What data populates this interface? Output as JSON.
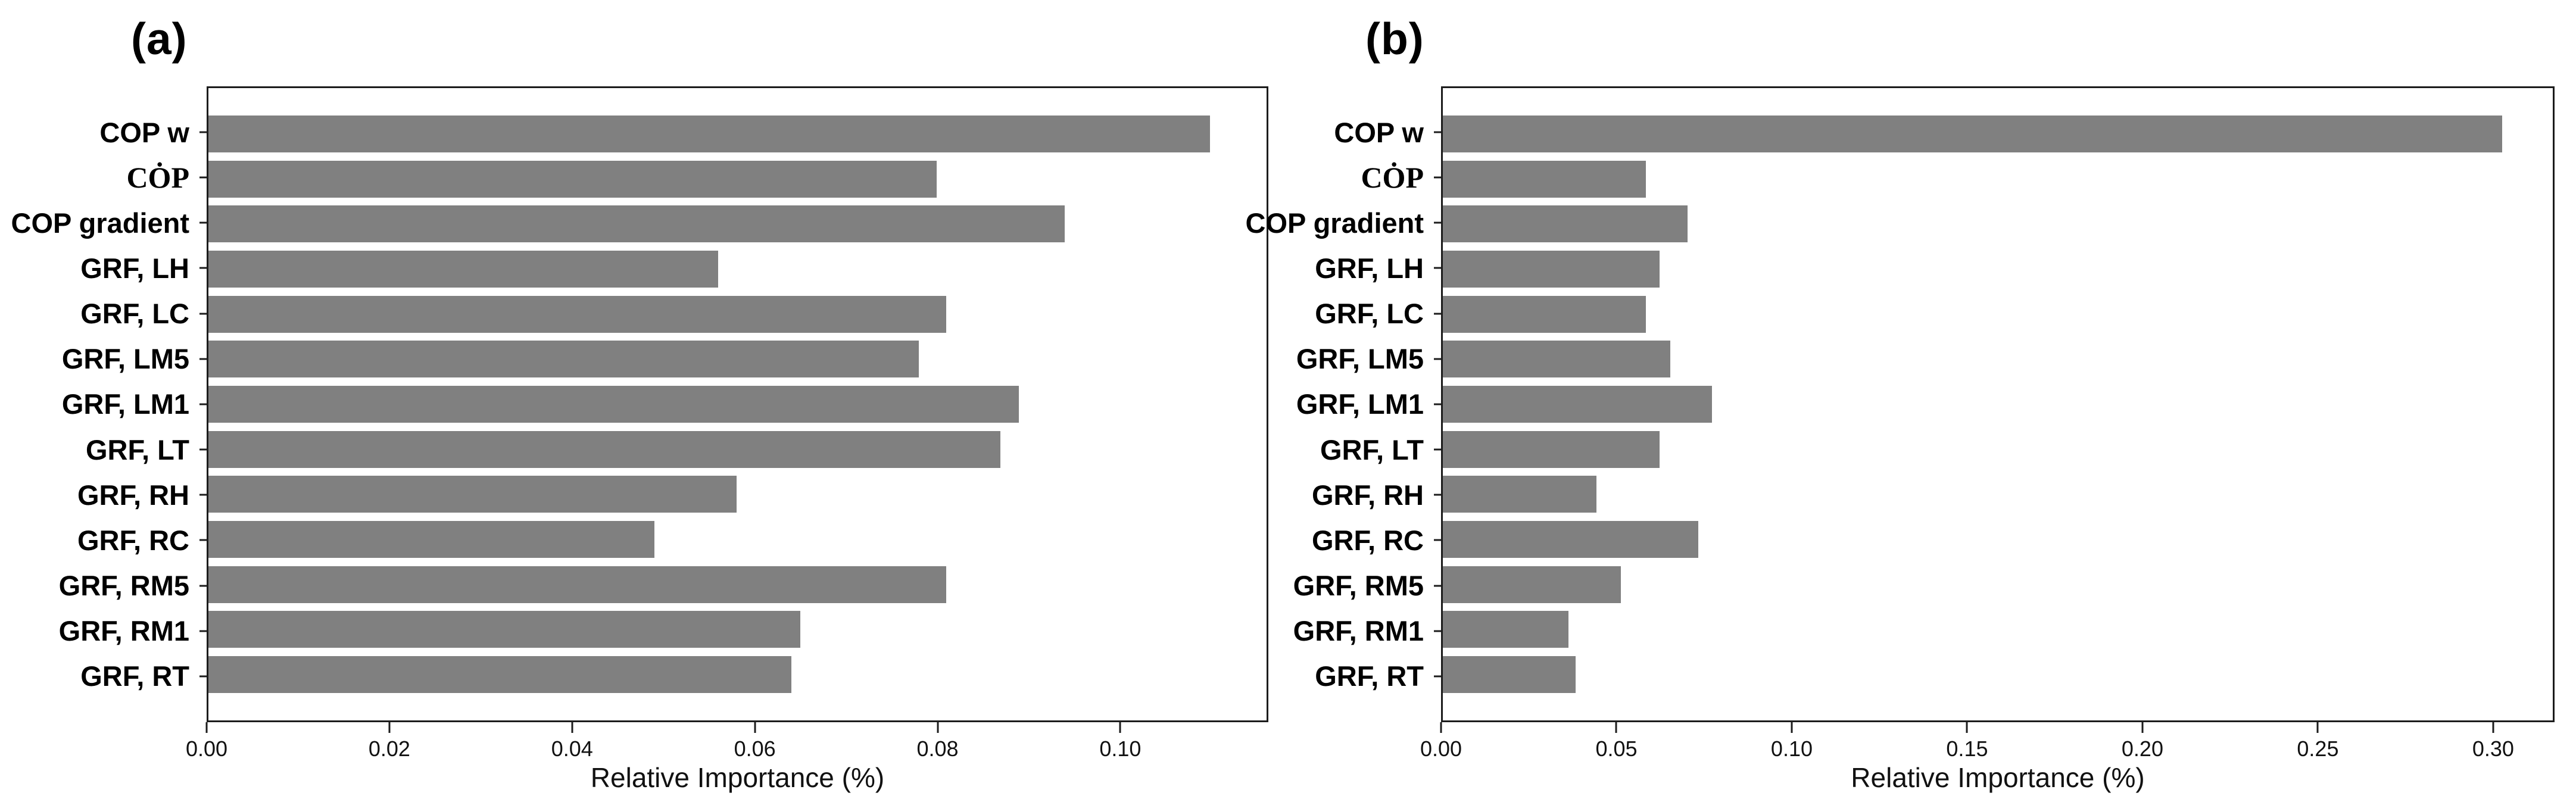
{
  "figure": {
    "background": "#ffffff",
    "axis_color": "#1c1c1c",
    "text_color": "#000000"
  },
  "chart_data": [
    {
      "type": "bar",
      "orientation": "horizontal",
      "panel_label": "(a)",
      "title": "",
      "categories": [
        "COP w",
        "CȮP",
        "COP gradient",
        "GRF, LH",
        "GRF, LC",
        "GRF, LM5",
        "GRF, LM1",
        "GRF, LT",
        "GRF, RH",
        "GRF, RC",
        "GRF, RM5",
        "GRF, RM1",
        "GRF, RT"
      ],
      "values": [
        0.11,
        0.08,
        0.094,
        0.056,
        0.081,
        0.078,
        0.089,
        0.087,
        0.058,
        0.049,
        0.081,
        0.065,
        0.064
      ],
      "xlabel": "Relative Importance (%)",
      "ylabel": "",
      "xticks": [
        0.0,
        0.02,
        0.04,
        0.06,
        0.08,
        0.1
      ],
      "xtick_labels": [
        "0.00",
        "0.02",
        "0.04",
        "0.06",
        "0.08",
        "0.10"
      ],
      "xlim": [
        0,
        0.1162
      ],
      "bar_color": "#808080",
      "grid": false,
      "legend": null
    },
    {
      "type": "bar",
      "orientation": "horizontal",
      "panel_label": "(b)",
      "title": "",
      "categories": [
        "COP w",
        "CȮP",
        "COP gradient",
        "GRF, LH",
        "GRF, LC",
        "GRF, LM5",
        "GRF, LM1",
        "GRF, LT",
        "GRF, RH",
        "GRF, RC",
        "GRF, RM5",
        "GRF, RM1",
        "GRF, RT"
      ],
      "values": [
        0.303,
        0.058,
        0.07,
        0.062,
        0.058,
        0.065,
        0.077,
        0.062,
        0.044,
        0.073,
        0.051,
        0.036,
        0.038
      ],
      "xlabel": "Relative Importance (%)",
      "ylabel": "",
      "xticks": [
        0.0,
        0.05,
        0.1,
        0.15,
        0.2,
        0.25,
        0.3
      ],
      "xtick_labels": [
        "0.00",
        "0.05",
        "0.10",
        "0.15",
        "0.20",
        "0.25",
        "0.30"
      ],
      "xlim": [
        0,
        0.3175
      ],
      "bar_color": "#808080",
      "grid": false,
      "legend": null
    }
  ]
}
